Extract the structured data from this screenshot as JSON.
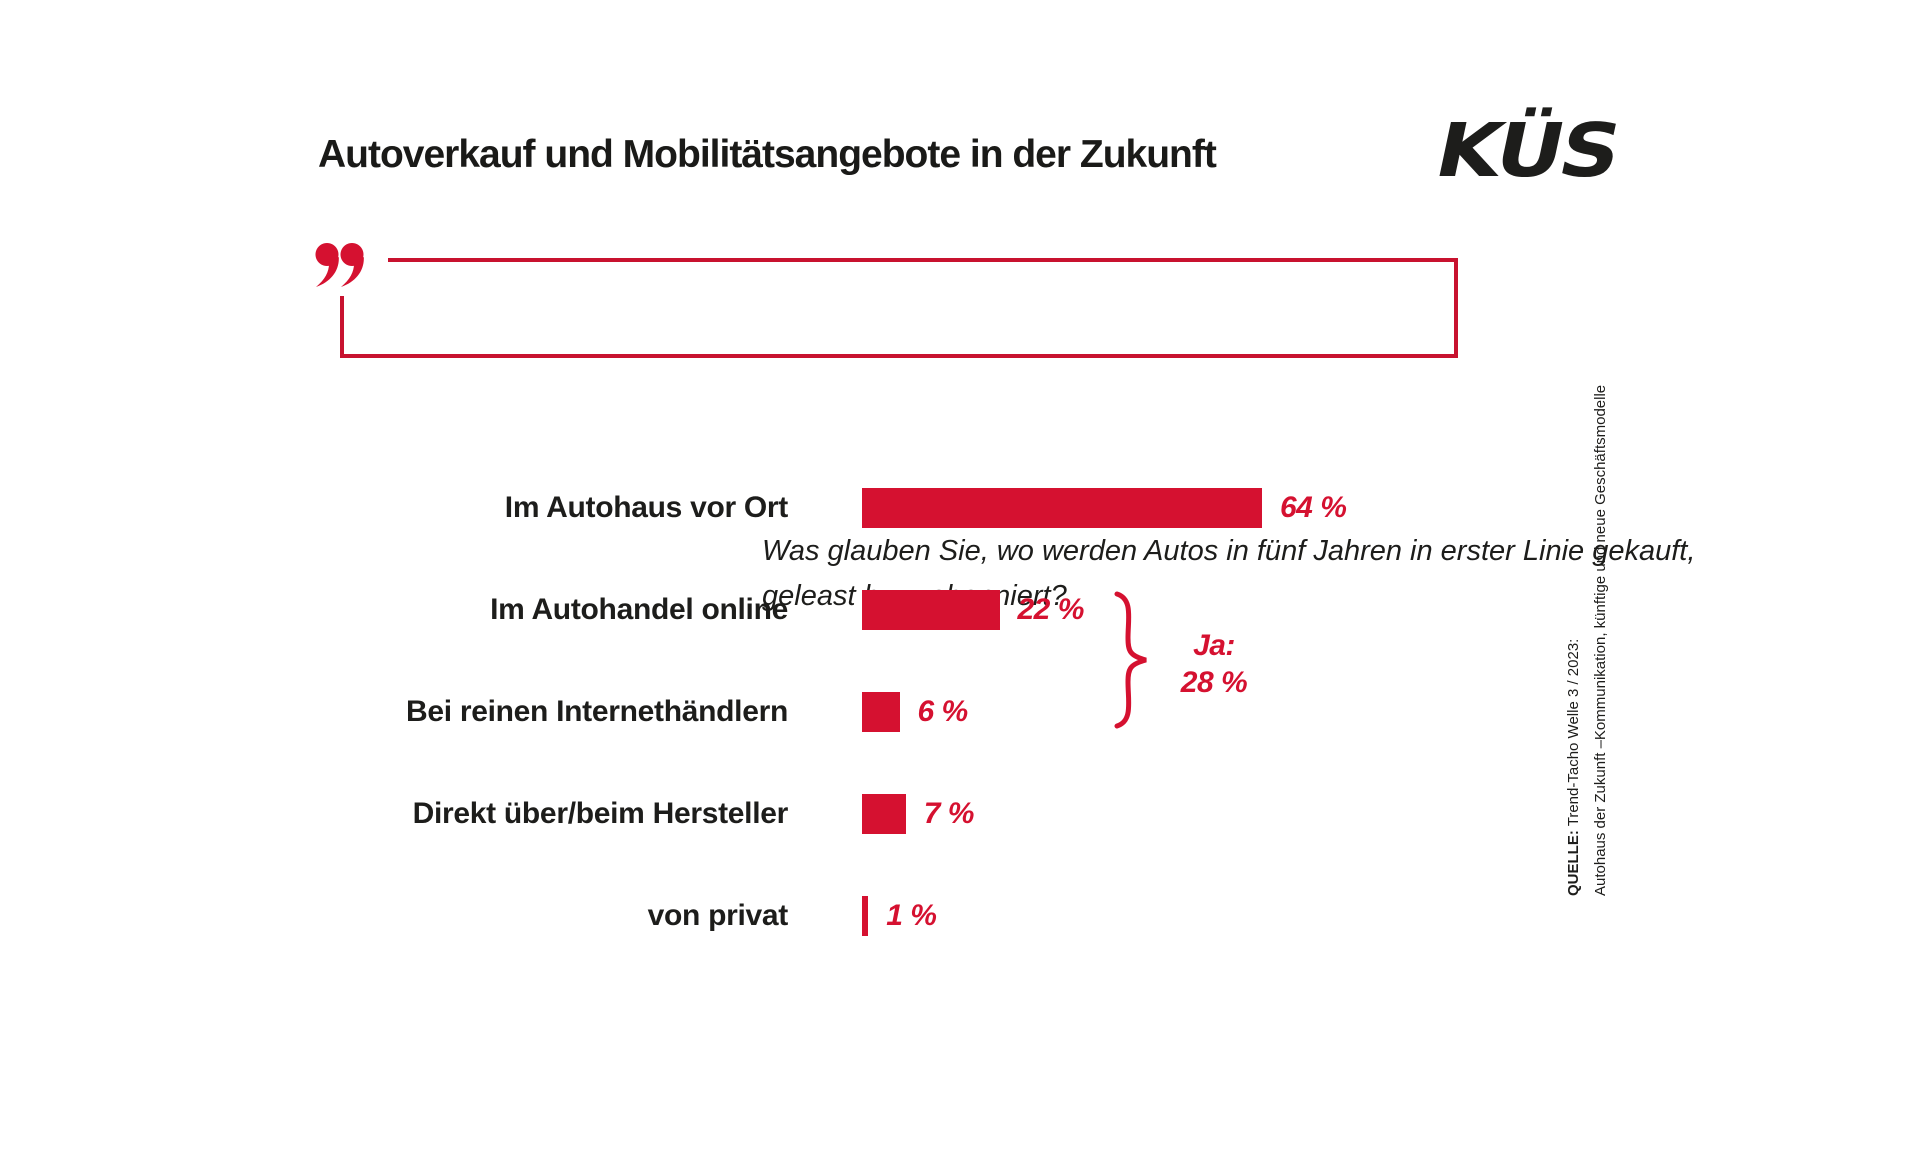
{
  "header": {
    "title": "Autoverkauf und Mobilitätsangebote in der Zukunft",
    "logo_text": "KÜS"
  },
  "question": {
    "line1": "Was glauben Sie, wo werden Autos in fünf Jahren in erster Linie gekauft,",
    "line2": "geleast bzw. abonniert?"
  },
  "chart_data": {
    "type": "bar",
    "orientation": "horizontal",
    "title": "Autoverkauf und Mobilitätsangebote in der Zukunft",
    "subtitle": "Was glauben Sie, wo werden Autos in fünf Jahren in erster Linie gekauft, geleast bzw. abonniert?",
    "categories": [
      "Im Autohaus vor Ort",
      "Im Autohandel online",
      "Bei reinen Internethändlern",
      "Direkt über/beim Hersteller",
      "von privat"
    ],
    "values": [
      64,
      22,
      6,
      7,
      1
    ],
    "value_labels": [
      "64 %",
      "22 %",
      "6 %",
      "7 %",
      "1 %"
    ],
    "unit": "%",
    "xlim": [
      0,
      64
    ],
    "grid": false,
    "bar_color": "#d51130",
    "annotation": {
      "grouped_categories": [
        "Im Autohandel online",
        "Bei reinen Internethändlern"
      ],
      "label": "Ja:",
      "value": "28 %"
    }
  },
  "annotation": {
    "label": "Ja:",
    "value": "28 %"
  },
  "source": {
    "prefix": "QUELLE:",
    "line1_rest": " Trend-Tacho Welle 3 / 2023:",
    "line2": "Autohaus der Zukunft –Kommunikation, künftige und neue Geschäftsmodelle"
  },
  "colors": {
    "red": "#d51130",
    "border_red": "#c8122f",
    "text": "#1d1d1b"
  }
}
